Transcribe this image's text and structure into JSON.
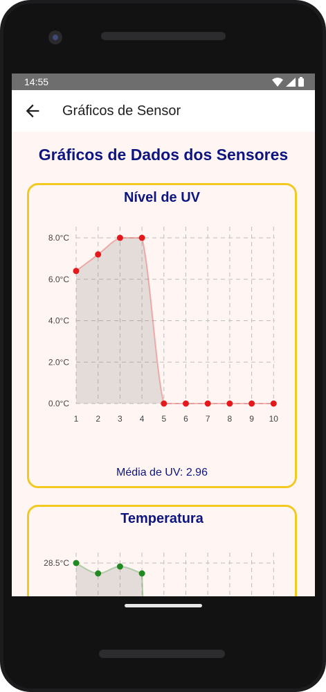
{
  "status_bar": {
    "time": "14:55"
  },
  "app_bar": {
    "title": "Gráficos de Sensor",
    "back_icon": "arrow-left-icon"
  },
  "page": {
    "title": "Gráficos de Dados dos Sensores"
  },
  "colors": {
    "accent": "#0d1580",
    "card_border": "#f2c921",
    "uv_series": "#e3191c",
    "temp_series": "#1f8a1f",
    "background": "#fff5f2"
  },
  "cards": {
    "uv": {
      "title": "Nível de UV",
      "average_label": "Média de UV: 2.96"
    },
    "temperature": {
      "title": "Temperatura"
    }
  },
  "chart_data": [
    {
      "type": "area",
      "title": "Nível de UV",
      "x": [
        1,
        2,
        3,
        4,
        5,
        6,
        7,
        8,
        9,
        10
      ],
      "values": [
        6.4,
        7.2,
        8.0,
        8.0,
        0.0,
        0.0,
        0.0,
        0.0,
        0.0,
        0.0
      ],
      "ylim": [
        0,
        8
      ],
      "y_ticks": [
        "0.0°C",
        "2.0°C",
        "4.0°C",
        "6.0°C",
        "8.0°C"
      ],
      "x_ticks": [
        "1",
        "2",
        "3",
        "4",
        "5",
        "6",
        "7",
        "8",
        "9",
        "10"
      ],
      "grid": true
    },
    {
      "type": "area",
      "title": "Temperatura",
      "x": [
        1,
        2,
        3,
        4
      ],
      "values": [
        28.5,
        28.2,
        28.4,
        28.2
      ],
      "y_ticks": [
        "28.5°C"
      ],
      "grid": true,
      "note": "partially visible"
    }
  ]
}
